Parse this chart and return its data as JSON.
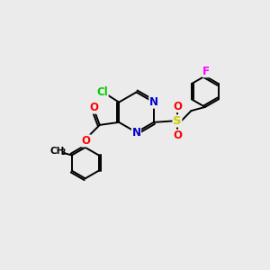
{
  "background_color": "#ebebeb",
  "bond_color": "#000000",
  "atom_colors": {
    "N": "#0000cc",
    "O": "#ff0000",
    "Cl": "#00cc00",
    "S": "#cccc00",
    "F": "#ff00ff",
    "C": "#000000"
  },
  "figsize": [
    3.0,
    3.0
  ],
  "dpi": 100
}
